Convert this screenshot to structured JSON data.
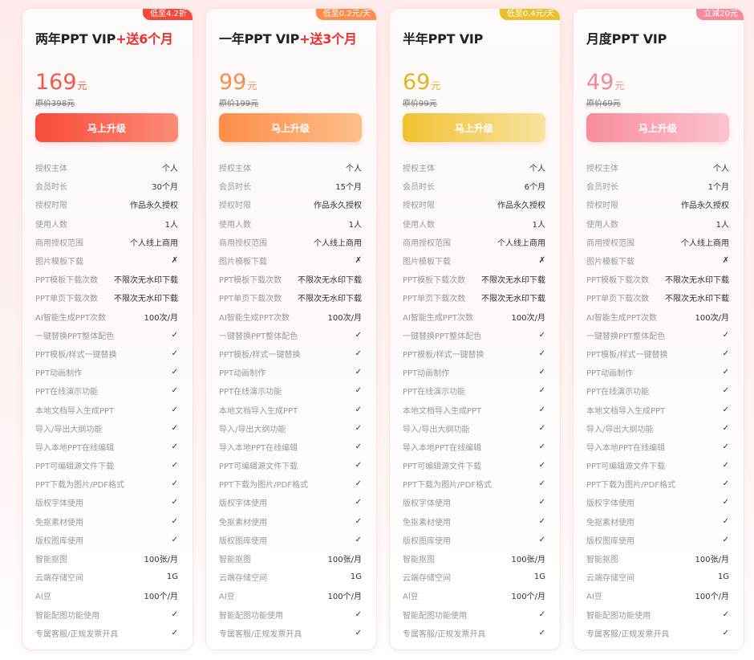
{
  "plans": [
    {
      "badge": "低至4.2折",
      "badge_color": "#f44a3c",
      "title": "两年PPT VIP",
      "bonus": "+送6个月",
      "price": "169",
      "unit": "元",
      "orig": "原价398元",
      "price_color": "#f4584a",
      "cta": "马上升级",
      "cta_gradient": [
        "#f84a3b",
        "#fd8c76"
      ],
      "values": [
        "个人",
        "30个月",
        "作品永久授权",
        "1人",
        "个人线上商用",
        "✗",
        "不限次无水印下载",
        "不限次无水印下载",
        "100次/月",
        "✓",
        "✓",
        "✓",
        "✓",
        "✓",
        "✓",
        "✓",
        "✓",
        "✓",
        "✓",
        "✓",
        "✓",
        "100张/月",
        "1G",
        "100个/月",
        "✓",
        "✓"
      ]
    },
    {
      "badge": "低至0.2元/天",
      "badge_color": "#fd8d4c",
      "title": "一年PPT VIP",
      "bonus": "+送3个月",
      "price": "99",
      "unit": "元",
      "orig": "原价199元",
      "price_color": "#fb8c4c",
      "cta": "马上升级",
      "cta_gradient": [
        "#fd8d48",
        "#fdbf8a"
      ],
      "values": [
        "个人",
        "15个月",
        "作品永久授权",
        "1人",
        "个人线上商用",
        "✗",
        "不限次无水印下载",
        "不限次无水印下载",
        "100次/月",
        "✓",
        "✓",
        "✓",
        "✓",
        "✓",
        "✓",
        "✓",
        "✓",
        "✓",
        "✓",
        "✓",
        "✓",
        "100张/月",
        "1G",
        "100个/月",
        "✓",
        "✓"
      ]
    },
    {
      "badge": "低至0.4元/天",
      "badge_color": "#e8c02c",
      "title": "半年PPT VIP",
      "bonus": "",
      "price": "69",
      "unit": "元",
      "orig": "原价99元",
      "price_color": "#e3b521",
      "cta": "马上升级",
      "cta_gradient": [
        "#f1c232",
        "#f8e3a0"
      ],
      "values": [
        "个人",
        "6个月",
        "作品永久授权",
        "1人",
        "个人线上商用",
        "✗",
        "不限次无水印下载",
        "不限次无水印下载",
        "100次/月",
        "✓",
        "✓",
        "✓",
        "✓",
        "✓",
        "✓",
        "✓",
        "✓",
        "✓",
        "✓",
        "✓",
        "✓",
        "100张/月",
        "1G",
        "100个/月",
        "✓",
        "✓"
      ]
    },
    {
      "badge": "立减20元",
      "badge_color": "#f38b9c",
      "title": "月度PPT VIP",
      "bonus": "",
      "price": "49",
      "unit": "元",
      "orig": "原价69元",
      "price_color": "#f08a9a",
      "cta": "马上升级",
      "cta_gradient": [
        "#f88c9d",
        "#fcc3cf"
      ],
      "values": [
        "个人",
        "1个月",
        "作品永久授权",
        "1人",
        "个人线上商用",
        "✗",
        "不限次无水印下载",
        "不限次无水印下载",
        "100次/月",
        "✓",
        "✓",
        "✓",
        "✓",
        "✓",
        "✓",
        "✓",
        "✓",
        "✓",
        "✓",
        "✓",
        "✓",
        "100张/月",
        "1G",
        "100个/月",
        "✓",
        "✓"
      ]
    }
  ],
  "feature_labels": [
    "授权主体",
    "会员时长",
    "授权时限",
    "使用人数",
    "商用授权范围",
    "图片模板下载",
    "PPT模板下载次数",
    "PPT单页下载次数",
    "AI智能生成PPT次数",
    "一键替换PPT整体配色",
    "PPT模板/样式一键替换",
    "PPT动画制作",
    "PPT在线演示功能",
    "本地文档导入生成PPT",
    "导入/导出大纲功能",
    "导入本地PPT在线编辑",
    "PPT可编辑源文件下载",
    "PPT下载为图片/PDF格式",
    "版权字体使用",
    "免抠素材使用",
    "版权图库使用",
    "智能抠图",
    "云端存储空间",
    "AI豆",
    "智能配图功能使用",
    "专属客服/正规发票开具"
  ]
}
